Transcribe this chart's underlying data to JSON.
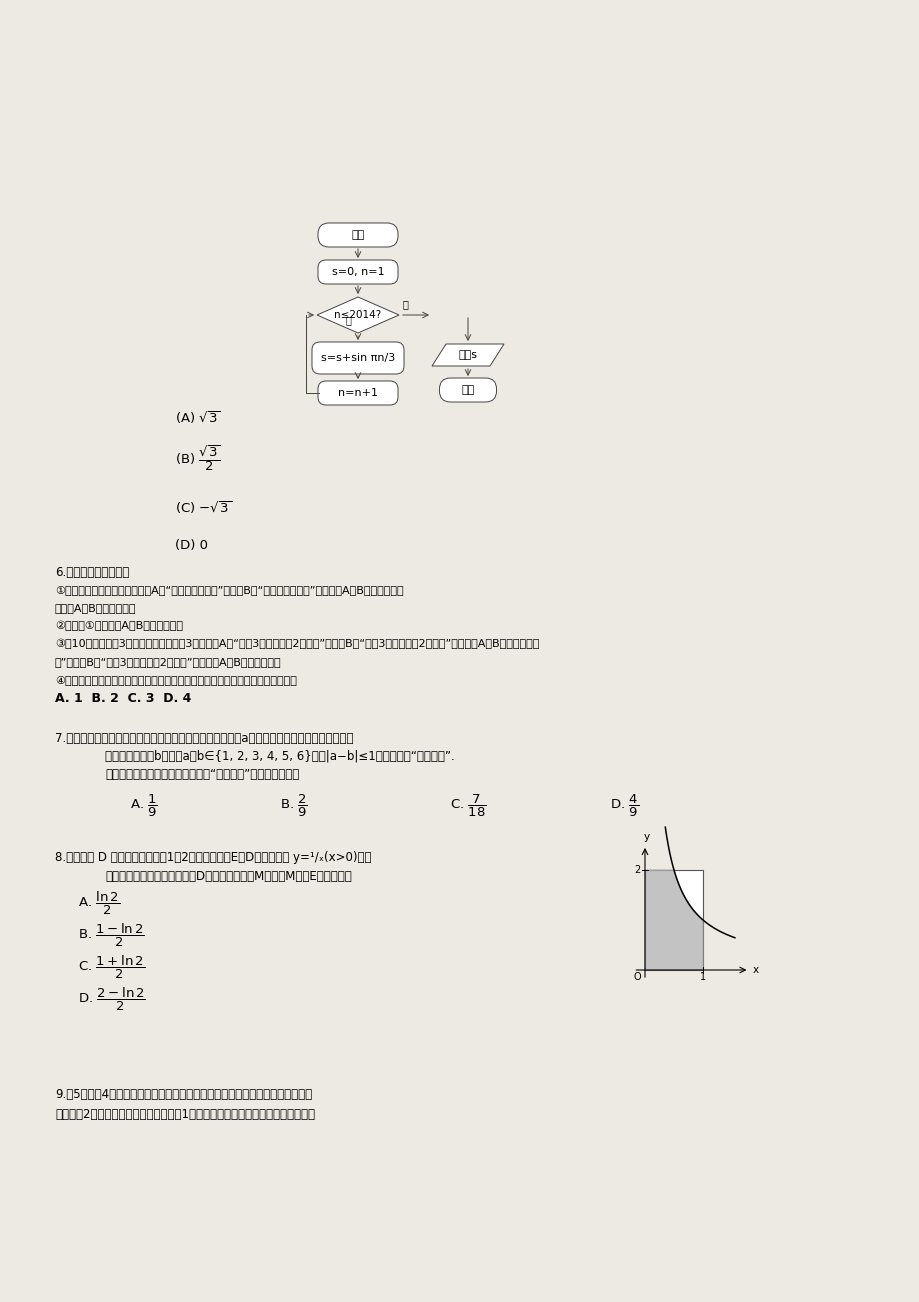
{
  "bg_color": "#ede9e3",
  "page_width": 9.2,
  "page_height": 13.02,
  "flowchart": {
    "start_text": "开始",
    "init_text": "s=0, n=1",
    "cond_text": "n≤2014?",
    "body_text": "s=s+sin πn/3",
    "incr_text": "n=n+1",
    "output_text": "输出s",
    "end_text": "结束",
    "yes_label": "是",
    "no_label": "否"
  },
  "q6_text": "6.给出以下四个命题：",
  "q6_1": "①将一枚硬币抛掷两次，设事件A为“两次都出现正面”，事件B为“两次都出现反面”，则事件A与B是对立事件；",
  "q6_1b": "则事件A与B是对立事件；",
  "q6_2": "②在命题①中，事件A与B是互斥事件；",
  "q6_3": "③在10件产品中有3件是次品，从中取卶3件，事件A为“所取3件中最多有2件次品”，事件B为“所取3件中至少有2件次品”，则事件A与B是互斥事件；",
  "q6_4": "④两事件对立必然互斥，反之不成立。试判断以上命题中真命题的个数是（　　）",
  "q6_opts": "A. 1  B. 2  C. 3  D. 4",
  "q7_text": "7.甲、乙两人玩猜数字游戏，先由甲心中想一个数字，记为a，再由乙猜甲心中所想的数字，把",
  "q7_2": "乙猜的数字记为b，其中a、b∈{1, 2, 3, 4, 5, 6}，若|a−b|≤1，就称甲乙“心有灵犊”.",
  "q7_3": "现任意找两人玩这个游戏，则他们“心有灵犊”的概率为（　）",
  "q8_text": "8.如图，设 D 是图中边长分别为1和2的矩形区域，E是D内位于函数 y=¹/ₓ(x>0)图像",
  "q8_2": "下方的区域（阴影部分），从D内随机取一个点M，则点M取自E内的概率为",
  "q9_text": "9.从5位同学4位同学在星期五、星期六、星期日参加公益活动，每人一天，要求",
  "q9_2": "星期五有2人参加，星期六、星期日各有1人参加，则不同的选派方法共有（　　）"
}
